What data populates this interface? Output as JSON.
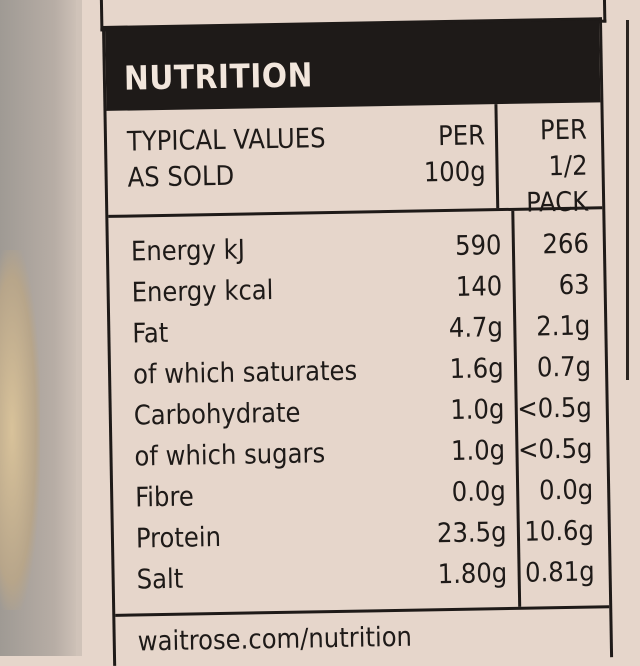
{
  "title": "NUTRITION",
  "header": {
    "col1_line1": "TYPICAL VALUES",
    "col1_line2": "AS SOLD",
    "col2_line1": "PER",
    "col2_line2": "100g",
    "col3_line1": "PER 1/2",
    "col3_line2": "PACK"
  },
  "rows": [
    {
      "name": "Energy kJ",
      "per100g": "590",
      "perHalfPack": "266"
    },
    {
      "name": "Energy kcal",
      "per100g": "140",
      "perHalfPack": "63"
    },
    {
      "name": "Fat",
      "per100g": "4.7g",
      "perHalfPack": "2.1g"
    },
    {
      "name": "of which saturates",
      "per100g": "1.6g",
      "perHalfPack": "0.7g"
    },
    {
      "name": "Carbohydrate",
      "per100g": "1.0g",
      "perHalfPack": "<0.5g"
    },
    {
      "name": "of which sugars",
      "per100g": "1.0g",
      "perHalfPack": "<0.5g"
    },
    {
      "name": "Fibre",
      "per100g": "0.0g",
      "perHalfPack": "0.0g"
    },
    {
      "name": "Protein",
      "per100g": "23.5g",
      "perHalfPack": "10.6g"
    },
    {
      "name": "Salt",
      "per100g": "1.80g",
      "perHalfPack": "0.81g"
    }
  ],
  "footer": "waitrose.com/nutrition"
}
